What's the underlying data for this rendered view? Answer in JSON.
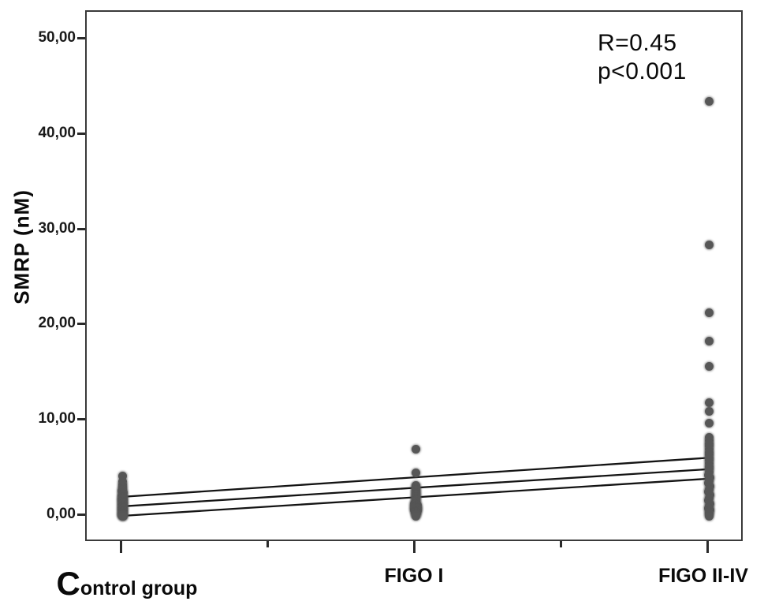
{
  "chart_data": {
    "type": "scatter",
    "title": "",
    "xlabel": "",
    "ylabel": "SMRP (nM)",
    "ylim": [
      0,
      50
    ],
    "grid": false,
    "legend": "none",
    "yticks": [
      {
        "value": 0,
        "label": "0,00"
      },
      {
        "value": 10,
        "label": "10,00"
      },
      {
        "value": 20,
        "label": "20,00"
      },
      {
        "value": 30,
        "label": "30,00"
      },
      {
        "value": 40,
        "label": "40,00"
      },
      {
        "value": 50,
        "label": "50,00"
      }
    ],
    "categories": [
      "Control group",
      "FIGO I",
      "FIGO II-IV"
    ],
    "annotation": {
      "line1": "R=0.45",
      "line2": "p<0.001"
    },
    "point_color": "#575757",
    "line_color": "#141414",
    "series": [
      {
        "name": "Control group",
        "category_index": 0,
        "points": [
          [
            4.2,
            0
          ],
          [
            3.6,
            0
          ],
          [
            3.3,
            0
          ],
          [
            3.05,
            0
          ],
          [
            2.8,
            0
          ],
          [
            2.6,
            -1
          ],
          [
            2.45,
            1
          ],
          [
            2.3,
            0
          ],
          [
            2.15,
            -1
          ],
          [
            2.0,
            1
          ],
          [
            1.9,
            0
          ],
          [
            1.8,
            -1
          ],
          [
            1.7,
            1
          ],
          [
            1.6,
            0
          ],
          [
            1.5,
            -1
          ],
          [
            1.4,
            1
          ],
          [
            1.3,
            0
          ],
          [
            1.2,
            -1
          ],
          [
            1.1,
            1
          ],
          [
            1.0,
            0
          ],
          [
            0.9,
            -1
          ],
          [
            0.8,
            1
          ],
          [
            0.7,
            0
          ],
          [
            0.6,
            -1
          ],
          [
            0.5,
            1
          ],
          [
            0.4,
            0
          ],
          [
            0.3,
            -1
          ],
          [
            0.2,
            1
          ],
          [
            0.1,
            0
          ],
          [
            0.05,
            -1
          ],
          [
            0.0,
            1
          ],
          [
            0.0,
            0
          ]
        ]
      },
      {
        "name": "FIGO I",
        "category_index": 1,
        "points": [
          [
            7.0,
            0
          ],
          [
            4.5,
            0
          ],
          [
            3.2,
            0
          ],
          [
            3.0,
            0
          ],
          [
            2.8,
            0
          ],
          [
            2.6,
            0
          ],
          [
            2.45,
            0
          ],
          [
            2.3,
            0
          ],
          [
            2.15,
            0
          ],
          [
            2.0,
            0
          ],
          [
            1.85,
            0
          ],
          [
            1.7,
            0
          ],
          [
            1.55,
            0
          ],
          [
            1.4,
            0
          ],
          [
            1.25,
            -2
          ],
          [
            1.15,
            2
          ],
          [
            1.0,
            -2
          ],
          [
            0.9,
            2
          ],
          [
            0.8,
            -2
          ],
          [
            0.7,
            2
          ],
          [
            0.6,
            -2
          ],
          [
            0.5,
            2
          ],
          [
            0.4,
            -1
          ],
          [
            0.3,
            1
          ],
          [
            0.2,
            0
          ],
          [
            0.1,
            0
          ],
          [
            0.0,
            0
          ]
        ]
      },
      {
        "name": "FIGO II-IV",
        "category_index": 2,
        "points": [
          [
            43.5,
            0
          ],
          [
            28.4,
            0
          ],
          [
            21.3,
            0
          ],
          [
            18.3,
            0
          ],
          [
            15.7,
            0
          ],
          [
            11.9,
            0
          ],
          [
            11.0,
            0
          ],
          [
            9.7,
            0
          ],
          [
            8.2,
            0
          ],
          [
            7.9,
            0
          ],
          [
            7.6,
            0
          ],
          [
            7.3,
            0
          ],
          [
            7.0,
            0
          ],
          [
            6.7,
            0
          ],
          [
            6.4,
            0
          ],
          [
            6.1,
            0
          ],
          [
            5.8,
            0
          ],
          [
            5.5,
            0
          ],
          [
            5.2,
            0
          ],
          [
            4.9,
            0
          ],
          [
            4.6,
            0
          ],
          [
            4.3,
            -1
          ],
          [
            4.0,
            1
          ],
          [
            3.7,
            0
          ],
          [
            3.4,
            -1
          ],
          [
            3.1,
            1
          ],
          [
            2.8,
            0
          ],
          [
            2.5,
            -1
          ],
          [
            2.2,
            1
          ],
          [
            1.9,
            0
          ],
          [
            1.6,
            -1
          ],
          [
            1.3,
            1
          ],
          [
            1.0,
            0
          ],
          [
            0.8,
            -1
          ],
          [
            0.6,
            1
          ],
          [
            0.4,
            0
          ],
          [
            0.2,
            0
          ],
          [
            0.0,
            0
          ]
        ]
      }
    ],
    "fit_lines": [
      {
        "start_category_index": 0,
        "start_value": 2.0,
        "end_category_index": 2,
        "end_value": 6.1
      },
      {
        "start_category_index": 0,
        "start_value": 1.0,
        "end_category_index": 2,
        "end_value": 4.9
      },
      {
        "start_category_index": 0,
        "start_value": 0.0,
        "end_category_index": 2,
        "end_value": 3.9
      }
    ]
  }
}
